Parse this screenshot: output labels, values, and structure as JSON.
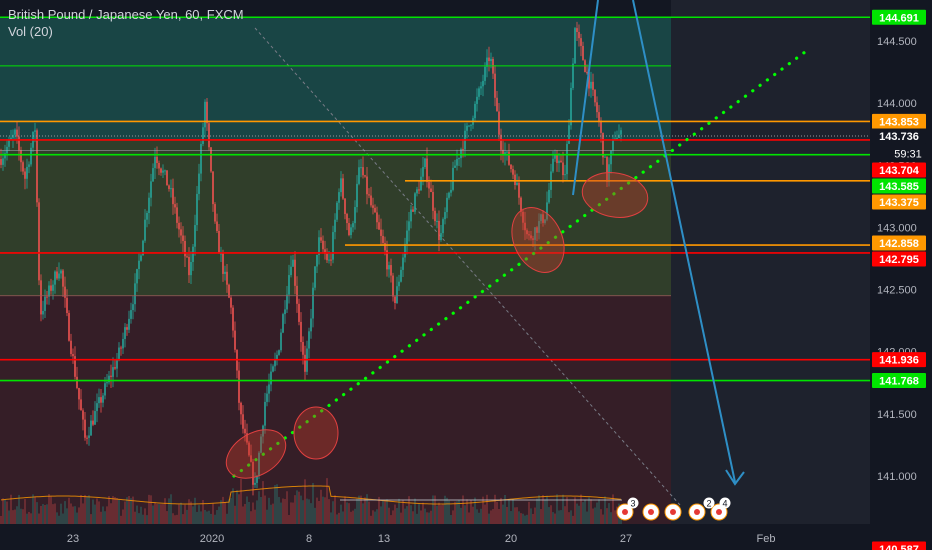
{
  "header": {
    "title": "British Pound / Japanese Yen, 60, FXCM",
    "volume_label": "Vol (20)"
  },
  "countdown": "59:31",
  "chart_data": {
    "type": "candlestick",
    "title": "British Pound / Japanese Yen, 60, FXCM",
    "ylim": [
      140.55,
      144.95
    ],
    "x_tick_labels": [
      "23",
      "2020",
      "8",
      "13",
      "20",
      "27",
      "Feb"
    ],
    "y_tick_labels": [
      "144.500",
      "144.000",
      "143.500",
      "143.000",
      "142.500",
      "142.000",
      "141.500",
      "141.000"
    ],
    "current_price": "143.736",
    "price_levels": [
      {
        "label": "144.691",
        "value": 144.691,
        "color": "#00e400"
      },
      {
        "label": "143.853",
        "value": 143.853,
        "color": "#ff9800"
      },
      {
        "label": "143.736",
        "value": 143.736,
        "color": "#787b86"
      },
      {
        "label": "143.704",
        "value": 143.704,
        "color": "#ff0000"
      },
      {
        "label": "143.585",
        "value": 143.585,
        "color": "#00e400"
      },
      {
        "label": "143.375",
        "value": 143.375,
        "color": "#ff9800"
      },
      {
        "label": "142.858",
        "value": 142.858,
        "color": "#ff9800"
      },
      {
        "label": "142.795",
        "value": 142.795,
        "color": "#ff0000"
      },
      {
        "label": "141.936",
        "value": 141.936,
        "color": "#ff0000"
      },
      {
        "label": "141.768",
        "value": 141.768,
        "color": "#00e400"
      },
      {
        "label": "140.587",
        "value": 140.587,
        "color": "#ff0000"
      }
    ],
    "zones": [
      {
        "from": 144.691,
        "to": 143.7,
        "color": "#1b4a49"
      },
      {
        "from": 143.7,
        "to": 142.45,
        "color": "#34432b"
      },
      {
        "from": 142.45,
        "to": 140.6,
        "color": "#3a1f28"
      }
    ],
    "event_markers": [
      "3",
      "2",
      "4"
    ],
    "colors": {
      "background": "#131722",
      "up": "#26a69a",
      "down": "#ef5350",
      "trendline": "#00ff00",
      "arrow": "#2e8fc6"
    }
  }
}
